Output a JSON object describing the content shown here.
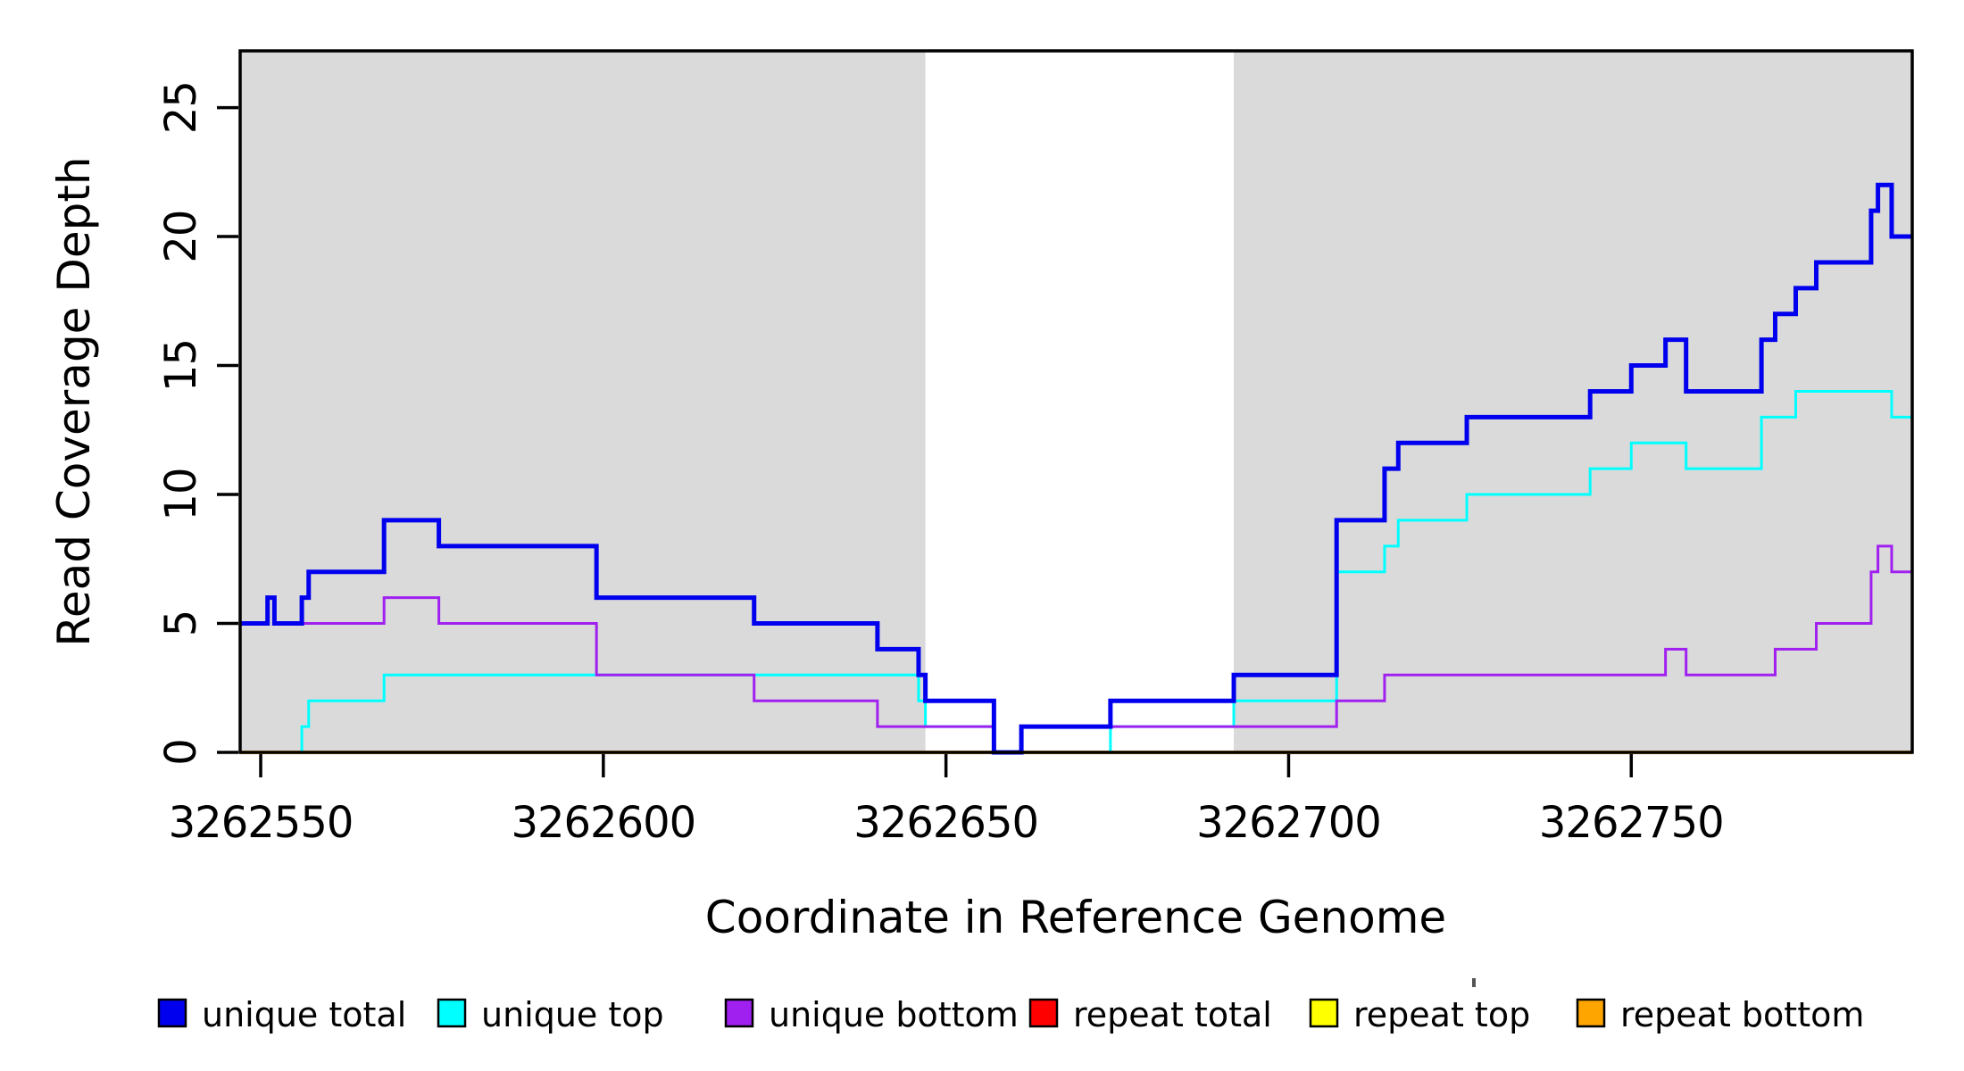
{
  "figure": {
    "y_axis_title": "Read Coverage Depth",
    "x_axis_title": "Coordinate in Reference Genome"
  },
  "chart_data": {
    "type": "line",
    "subtype": "step",
    "title": "",
    "xlabel": "Coordinate in Reference Genome",
    "ylabel": "Read Coverage Depth",
    "xlim": [
      3262547,
      3262791
    ],
    "ylim": [
      0,
      27.2
    ],
    "x_ticks": [
      3262550,
      3262600,
      3262650,
      3262700,
      3262750
    ],
    "y_ticks": [
      0,
      5,
      10,
      15,
      20,
      25
    ],
    "grid": false,
    "legend_position": "bottom",
    "plot_background": "#ffffff",
    "shaded_regions": [
      {
        "x0": 3262547,
        "x1": 3262647,
        "color": "#dadada"
      },
      {
        "x0": 3262692,
        "x1": 3262791,
        "color": "#dadada"
      }
    ],
    "draw_order": [
      "repeat total",
      "repeat top",
      "repeat bottom",
      "unique top",
      "unique bottom",
      "unique total"
    ],
    "series": [
      {
        "name": "unique total",
        "color": "#0000ee",
        "width": 5,
        "steps": [
          [
            3262547,
            5
          ],
          [
            3262551,
            6
          ],
          [
            3262552,
            5
          ],
          [
            3262556,
            6
          ],
          [
            3262557,
            7
          ],
          [
            3262568,
            9
          ],
          [
            3262576,
            8
          ],
          [
            3262599,
            6
          ],
          [
            3262622,
            5
          ],
          [
            3262640,
            4
          ],
          [
            3262646,
            3
          ],
          [
            3262647,
            2
          ],
          [
            3262657,
            0
          ],
          [
            3262661,
            1
          ],
          [
            3262674,
            2
          ],
          [
            3262692,
            3
          ],
          [
            3262707,
            9
          ],
          [
            3262714,
            11
          ],
          [
            3262716,
            12
          ],
          [
            3262726,
            13
          ],
          [
            3262744,
            14
          ],
          [
            3262750,
            15
          ],
          [
            3262755,
            16
          ],
          [
            3262758,
            14
          ],
          [
            3262769,
            16
          ],
          [
            3262771,
            17
          ],
          [
            3262774,
            18
          ],
          [
            3262777,
            19
          ],
          [
            3262785,
            21
          ],
          [
            3262786,
            22
          ],
          [
            3262788,
            20
          ]
        ]
      },
      {
        "name": "unique top",
        "color": "#00ffff",
        "width": 3,
        "steps": [
          [
            3262547,
            0
          ],
          [
            3262556,
            1
          ],
          [
            3262557,
            2
          ],
          [
            3262568,
            3
          ],
          [
            3262646,
            2
          ],
          [
            3262647,
            1
          ],
          [
            3262657,
            0
          ],
          [
            3262674,
            1
          ],
          [
            3262692,
            2
          ],
          [
            3262707,
            7
          ],
          [
            3262714,
            8
          ],
          [
            3262716,
            9
          ],
          [
            3262726,
            10
          ],
          [
            3262744,
            11
          ],
          [
            3262750,
            12
          ],
          [
            3262758,
            11
          ],
          [
            3262769,
            13
          ],
          [
            3262774,
            14
          ],
          [
            3262788,
            13
          ]
        ]
      },
      {
        "name": "unique bottom",
        "color": "#a020f0",
        "width": 3,
        "steps": [
          [
            3262547,
            5
          ],
          [
            3262551,
            6
          ],
          [
            3262552,
            5
          ],
          [
            3262568,
            6
          ],
          [
            3262576,
            5
          ],
          [
            3262599,
            3
          ],
          [
            3262622,
            2
          ],
          [
            3262640,
            1
          ],
          [
            3262657,
            0
          ],
          [
            3262661,
            1
          ],
          [
            3262707,
            2
          ],
          [
            3262714,
            3
          ],
          [
            3262755,
            4
          ],
          [
            3262758,
            3
          ],
          [
            3262771,
            4
          ],
          [
            3262777,
            5
          ],
          [
            3262785,
            7
          ],
          [
            3262786,
            8
          ],
          [
            3262788,
            7
          ]
        ]
      },
      {
        "name": "repeat total",
        "color": "#ff0000",
        "width": 3,
        "steps": [
          [
            3262547,
            0
          ]
        ]
      },
      {
        "name": "repeat top",
        "color": "#ffff00",
        "width": 3,
        "steps": [
          [
            3262547,
            0
          ]
        ]
      },
      {
        "name": "repeat bottom",
        "color": "#ffa500",
        "width": 4,
        "steps": [
          [
            3262547,
            0
          ]
        ]
      }
    ]
  },
  "legend": {
    "items": [
      {
        "label": "unique total",
        "color": "#0000ee"
      },
      {
        "label": "unique top",
        "color": "#00ffff"
      },
      {
        "label": "unique bottom",
        "color": "#a020f0"
      },
      {
        "label": "repeat total",
        "color": "#ff0000"
      },
      {
        "label": "repeat top",
        "color": "#ffff00"
      },
      {
        "label": "repeat bottom",
        "color": "#ffa500"
      }
    ]
  }
}
